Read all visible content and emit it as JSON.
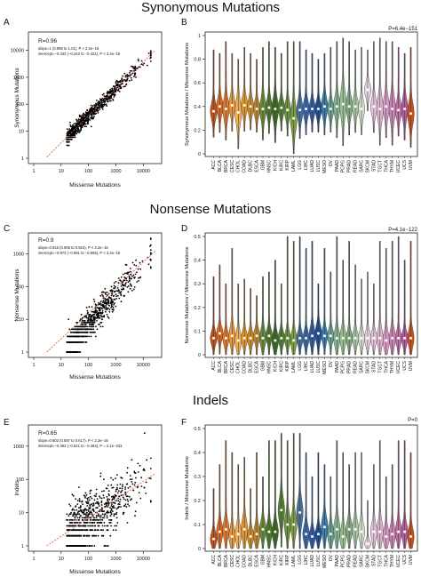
{
  "sections": [
    {
      "title": "Synonymous Mutations",
      "scatter": {
        "panel_label": "A",
        "xlabel": "Missense Mutations",
        "ylabel": "Synonymous Mutations",
        "r_text": "R=0.96",
        "stats_line1": "slope=1 (0.998 to 1.01), P < 2.2e−16",
        "stats_line2": "intercept=−0.432 (−0.442 to −0.421), P < 2.2e−16"
      },
      "violin": {
        "panel_label": "B",
        "ylabel": "Synonymous Mutations / Missense Mutations",
        "p_text": "P=6.4e−151"
      }
    },
    {
      "title": "Nonsense Mutations",
      "scatter": {
        "panel_label": "C",
        "xlabel": "Missense Mutations",
        "ylabel": "Nonsense Mutations",
        "r_text": "R=0.9",
        "stats_line1": "slope=0.915 (0.906 to 0.924), P < 2.2e−16",
        "stats_line2": "intercept=−0.973 (−0.991 to −0.955), P < 2.2e−16"
      },
      "violin": {
        "panel_label": "D",
        "ylabel": "Nonsense Mutations / Missense Mutations",
        "p_text": "P=4.1e−122"
      }
    },
    {
      "title": "Indels",
      "scatter": {
        "panel_label": "E",
        "xlabel": "Missense Mutations",
        "ylabel": "Indels",
        "r_text": "R=0.65",
        "stats_line1": "slope=0.602 (0.587 to 0.617), P < 2.2e−16",
        "stats_line2": "intercept=−0.492 (−0.521 to −0.464), P = 2.1e−241"
      },
      "violin": {
        "panel_label": "F",
        "ylabel": "Indels / Missense Mutations",
        "p_text": "P=0"
      }
    }
  ],
  "chart_data": [
    {
      "type": "scatter",
      "panel": "A",
      "scale": "log",
      "xlim": [
        1,
        30000
      ],
      "ylim": [
        1,
        30000
      ],
      "xticks": [
        1,
        10,
        100,
        1000,
        10000
      ],
      "yticks": [
        1,
        10,
        100,
        1000,
        10000
      ],
      "fit": {
        "slope": 1,
        "intercept": -0.432
      },
      "point_color": "#000000",
      "fit_color": "#e0602a"
    },
    {
      "type": "scatter",
      "panel": "C",
      "scale": "log",
      "xlim": [
        1,
        30000
      ],
      "ylim": [
        1,
        3000
      ],
      "xticks": [
        1,
        10,
        100,
        1000,
        10000
      ],
      "yticks": [
        1,
        10,
        100,
        1000
      ],
      "fit": {
        "slope": 0.915,
        "intercept": -0.973
      },
      "point_color": "#000000",
      "fit_color": "#e0602a"
    },
    {
      "type": "scatter",
      "panel": "E",
      "scale": "log",
      "xlim": [
        1,
        30000
      ],
      "ylim": [
        1,
        3000
      ],
      "xticks": [
        1,
        10,
        100,
        1000,
        10000
      ],
      "yticks": [
        1,
        10,
        100,
        1000
      ],
      "fit": {
        "slope": 0.602,
        "intercept": -0.492
      },
      "point_color": "#000000",
      "fit_color": "#e0602a"
    },
    {
      "type": "violin",
      "panel": "B",
      "categories": [
        "ACC",
        "BLCA",
        "BRCA",
        "CESC",
        "CHOL",
        "COAD",
        "DLBC",
        "ESCA",
        "GBM",
        "HNSC",
        "KICH",
        "KIRC",
        "KIRP",
        "LAML",
        "LGG",
        "LIHC",
        "LUAD",
        "LUSC",
        "MESO",
        "OV",
        "PAAD",
        "PCPG",
        "PRAD",
        "READ",
        "SARC",
        "SKCM",
        "STAD",
        "TGCT",
        "THCA",
        "THYM",
        "UCEC",
        "UCS",
        "UVM"
      ],
      "ylim": [
        0,
        1.0
      ],
      "yticks": [
        0.0,
        0.2,
        0.4,
        0.6,
        0.8,
        1.0
      ],
      "medians": [
        0.36,
        0.4,
        0.38,
        0.41,
        0.35,
        0.41,
        0.4,
        0.38,
        0.38,
        0.39,
        0.38,
        0.39,
        0.37,
        0.3,
        0.37,
        0.38,
        0.38,
        0.38,
        0.4,
        0.38,
        0.4,
        0.42,
        0.4,
        0.4,
        0.38,
        0.54,
        0.4,
        0.38,
        0.4,
        0.38,
        0.37,
        0.38,
        0.34
      ],
      "spread": [
        0.1,
        0.1,
        0.12,
        0.1,
        0.14,
        0.1,
        0.09,
        0.09,
        0.12,
        0.1,
        0.13,
        0.09,
        0.1,
        0.15,
        0.11,
        0.1,
        0.09,
        0.09,
        0.11,
        0.09,
        0.12,
        0.16,
        0.11,
        0.1,
        0.1,
        0.08,
        0.1,
        0.14,
        0.12,
        0.14,
        0.1,
        0.12,
        0.13
      ],
      "whisker_max": [
        0.88,
        0.85,
        0.95,
        0.85,
        0.8,
        0.9,
        0.85,
        0.8,
        0.9,
        0.95,
        0.9,
        0.85,
        0.95,
        0.95,
        0.95,
        0.88,
        0.85,
        0.8,
        0.85,
        0.9,
        0.95,
        0.98,
        0.95,
        0.88,
        0.9,
        0.88,
        0.95,
        0.98,
        0.95,
        0.95,
        0.9,
        0.85,
        0.9
      ],
      "colors": [
        "#c0501e",
        "#d86a25",
        "#e07a30",
        "#e8953c",
        "#f0ae55",
        "#e0962e",
        "#cc8a2a",
        "#b88530",
        "#6a8a3a",
        "#4e7a2e",
        "#3e6a28",
        "#557e35",
        "#6c9240",
        "#7c9e44",
        "#466f9a",
        "#3a66a8",
        "#2f5ca0",
        "#1f4e92",
        "#3d7aa6",
        "#6aa090",
        "#86b290",
        "#98be92",
        "#80a882",
        "#a8c4a2",
        "#cfe0c8",
        "#e8d2e0",
        "#e6c4da",
        "#deb0cc",
        "#d79ac2",
        "#c884b2",
        "#bf6ea6",
        "#b45a98",
        "#c8501e"
      ]
    },
    {
      "type": "violin",
      "panel": "D",
      "categories": [
        "ACC",
        "BLCA",
        "BRCA",
        "CESC",
        "CHOL",
        "COAD",
        "DLBC",
        "ESCA",
        "GBM",
        "HNSC",
        "KICH",
        "KIRC",
        "KIRP",
        "LAML",
        "LGG",
        "LIHC",
        "LUAD",
        "LUSC",
        "MESO",
        "OV",
        "PAAD",
        "PCPG",
        "PRAD",
        "READ",
        "SARC",
        "SKCM",
        "STAD",
        "TGCT",
        "THCA",
        "THYM",
        "UCEC",
        "UCS",
        "UVM"
      ],
      "ylim": [
        0,
        0.5
      ],
      "yticks": [
        0.0,
        0.1,
        0.2,
        0.3,
        0.4,
        0.5
      ],
      "medians": [
        0.07,
        0.09,
        0.07,
        0.08,
        0.06,
        0.07,
        0.07,
        0.08,
        0.07,
        0.08,
        0.06,
        0.07,
        0.07,
        0.06,
        0.07,
        0.07,
        0.08,
        0.09,
        0.08,
        0.08,
        0.07,
        0.07,
        0.07,
        0.07,
        0.07,
        0.07,
        0.07,
        0.07,
        0.06,
        0.07,
        0.07,
        0.07,
        0.07
      ],
      "spread": [
        0.04,
        0.04,
        0.04,
        0.05,
        0.05,
        0.04,
        0.04,
        0.04,
        0.05,
        0.04,
        0.05,
        0.04,
        0.04,
        0.05,
        0.04,
        0.04,
        0.05,
        0.05,
        0.04,
        0.04,
        0.05,
        0.05,
        0.04,
        0.04,
        0.04,
        0.04,
        0.04,
        0.05,
        0.05,
        0.05,
        0.04,
        0.04,
        0.05
      ],
      "whisker_max": [
        0.33,
        0.38,
        0.3,
        0.45,
        0.3,
        0.32,
        0.28,
        0.25,
        0.33,
        0.35,
        0.4,
        0.3,
        0.5,
        0.48,
        0.5,
        0.45,
        0.48,
        0.3,
        0.45,
        0.35,
        0.5,
        0.4,
        0.48,
        0.38,
        0.32,
        0.35,
        0.3,
        0.48,
        0.45,
        0.48,
        0.5,
        0.4,
        0.48
      ],
      "colors": [
        "#c0501e",
        "#d86a25",
        "#e07a30",
        "#e8953c",
        "#f0ae55",
        "#e0962e",
        "#cc8a2a",
        "#b88530",
        "#6a8a3a",
        "#4e7a2e",
        "#3e6a28",
        "#557e35",
        "#6c9240",
        "#7c9e44",
        "#466f9a",
        "#3a66a8",
        "#2f5ca0",
        "#1f4e92",
        "#3d7aa6",
        "#6aa090",
        "#86b290",
        "#98be92",
        "#80a882",
        "#a8c4a2",
        "#cfe0c8",
        "#e8d2e0",
        "#e6c4da",
        "#deb0cc",
        "#d79ac2",
        "#c884b2",
        "#bf6ea6",
        "#b45a98",
        "#c8501e"
      ]
    },
    {
      "type": "violin",
      "panel": "F",
      "categories": [
        "ACC",
        "BLCA",
        "BRCA",
        "CESC",
        "CHOL",
        "COAD",
        "DLBC",
        "ESCA",
        "GBM",
        "HNSC",
        "KICH",
        "KIRC",
        "KIRP",
        "LAML",
        "LGG",
        "LIHC",
        "LUAD",
        "LUSC",
        "MESO",
        "OV",
        "PAAD",
        "PCPG",
        "PRAD",
        "READ",
        "SARC",
        "SKCM",
        "STAD",
        "TGCT",
        "THCA",
        "THYM",
        "UCEC",
        "UCS",
        "UVM"
      ],
      "ylim": [
        0,
        0.5
      ],
      "yticks": [
        0.0,
        0.1,
        0.2,
        0.3,
        0.4,
        0.5
      ],
      "medians": [
        0.04,
        0.07,
        0.08,
        0.05,
        0.06,
        0.08,
        0.05,
        0.06,
        0.08,
        0.07,
        0.07,
        0.16,
        0.1,
        0.1,
        0.15,
        0.06,
        0.05,
        0.06,
        0.09,
        0.06,
        0.08,
        0.05,
        0.08,
        0.08,
        0.07,
        0.02,
        0.07,
        0.07,
        0.05,
        0.06,
        0.07,
        0.07,
        0.05
      ],
      "spread": [
        0.04,
        0.05,
        0.05,
        0.05,
        0.05,
        0.06,
        0.04,
        0.05,
        0.05,
        0.05,
        0.05,
        0.07,
        0.06,
        0.06,
        0.07,
        0.05,
        0.04,
        0.04,
        0.06,
        0.05,
        0.06,
        0.05,
        0.05,
        0.05,
        0.05,
        0.02,
        0.05,
        0.06,
        0.05,
        0.05,
        0.05,
        0.05,
        0.05
      ],
      "whisker_max": [
        0.25,
        0.35,
        0.45,
        0.4,
        0.35,
        0.38,
        0.25,
        0.4,
        0.3,
        0.45,
        0.45,
        0.48,
        0.45,
        0.48,
        0.48,
        0.4,
        0.3,
        0.4,
        0.35,
        0.3,
        0.45,
        0.4,
        0.35,
        0.4,
        0.4,
        0.2,
        0.35,
        0.45,
        0.3,
        0.35,
        0.45,
        0.45,
        0.4
      ],
      "colors": [
        "#c0501e",
        "#d86a25",
        "#e07a30",
        "#e8953c",
        "#f0ae55",
        "#e0962e",
        "#cc8a2a",
        "#b88530",
        "#6a8a3a",
        "#4e7a2e",
        "#3e6a28",
        "#557e35",
        "#6c9240",
        "#7c9e44",
        "#466f9a",
        "#3a66a8",
        "#2f5ca0",
        "#1f4e92",
        "#3d7aa6",
        "#6aa090",
        "#86b290",
        "#98be92",
        "#80a882",
        "#a8c4a2",
        "#cfe0c8",
        "#e8d2e0",
        "#e6c4da",
        "#deb0cc",
        "#d79ac2",
        "#c884b2",
        "#bf6ea6",
        "#b45a98",
        "#c8501e"
      ]
    }
  ]
}
